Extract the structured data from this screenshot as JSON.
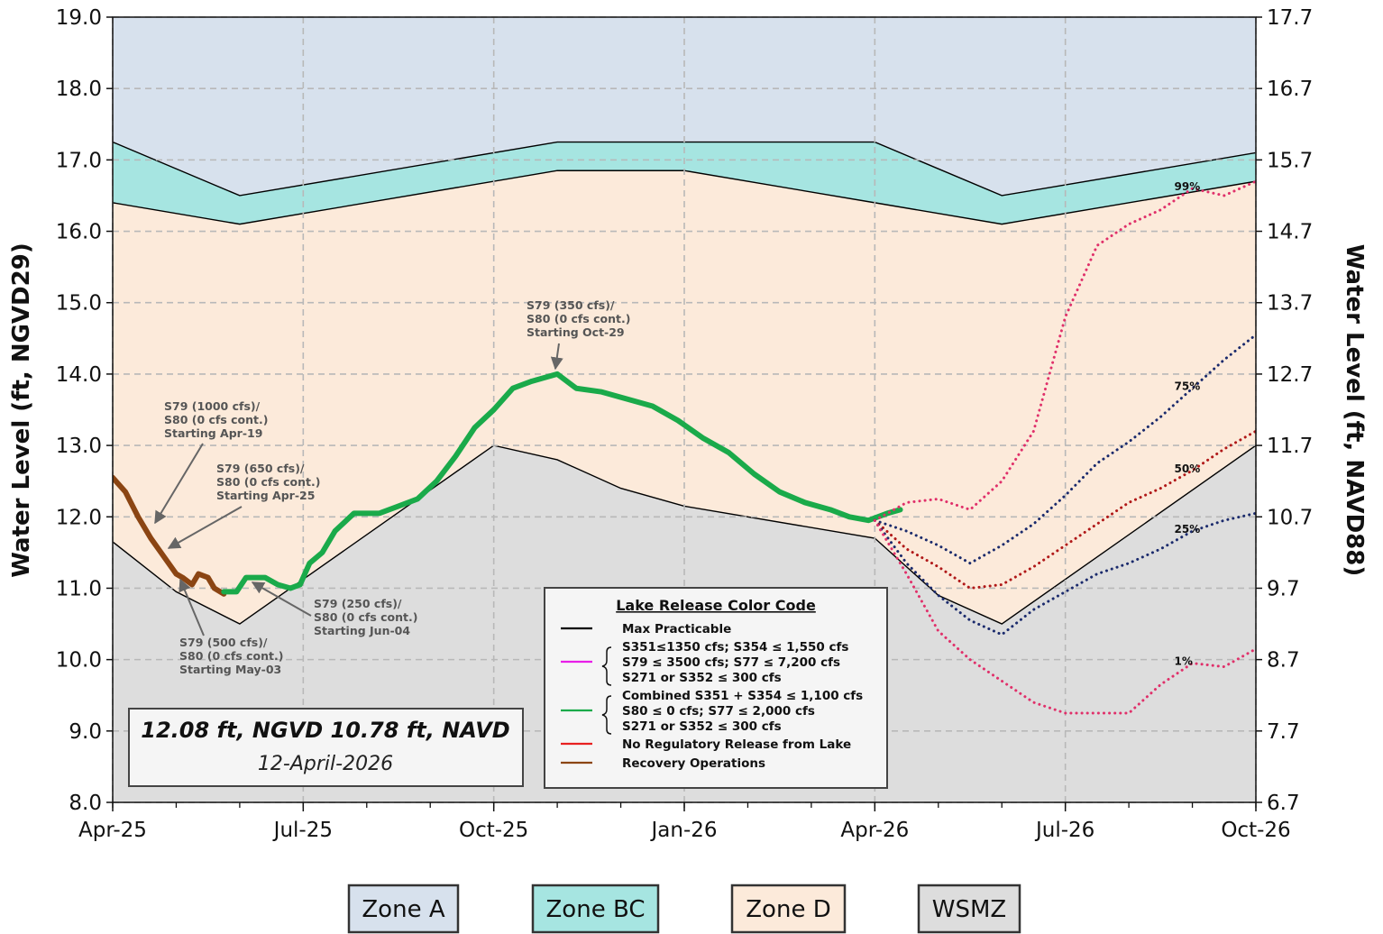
{
  "chart_data": {
    "type": "line",
    "ylabel": "Water Level (ft, NGVD29)",
    "y2label": "Water Level (ft, NAVD88)",
    "xlim": [
      0,
      18
    ],
    "xticks": [
      {
        "value": 0,
        "label": "Apr-25"
      },
      {
        "value": 3,
        "label": "Jul-25"
      },
      {
        "value": 6,
        "label": "Oct-25"
      },
      {
        "value": 9,
        "label": "Jan-26"
      },
      {
        "value": 12,
        "label": "Apr-26"
      },
      {
        "value": 15,
        "label": "Jul-26"
      },
      {
        "value": 18,
        "label": "Oct-26"
      }
    ],
    "ylim": [
      8.0,
      19.0
    ],
    "yticks": [
      {
        "value": 8,
        "label": "8.0"
      },
      {
        "value": 9,
        "label": "9.0"
      },
      {
        "value": 10,
        "label": "10.0"
      },
      {
        "value": 11,
        "label": "11.0"
      },
      {
        "value": 12,
        "label": "12.0"
      },
      {
        "value": 13,
        "label": "13.0"
      },
      {
        "value": 14,
        "label": "14.0"
      },
      {
        "value": 15,
        "label": "15.0"
      },
      {
        "value": 16,
        "label": "16.0"
      },
      {
        "value": 17,
        "label": "17.0"
      },
      {
        "value": 18,
        "label": "18.0"
      },
      {
        "value": 19,
        "label": "19.0"
      }
    ],
    "y2lim": [
      6.7,
      17.7
    ],
    "y2ticks": [
      6.7,
      7.7,
      8.7,
      9.7,
      10.7,
      11.7,
      12.7,
      13.7,
      14.7,
      15.7,
      16.7,
      17.7
    ],
    "grid": true,
    "zones": [
      {
        "name": "Zone A",
        "color": "#d7e1ed"
      },
      {
        "name": "Zone BC",
        "color": "#a6e5e1"
      },
      {
        "name": "Zone D",
        "color": "#fceada"
      },
      {
        "name": "WSMZ",
        "color": "#dddddd"
      }
    ],
    "boundary_color": "#000000",
    "boundaries": [
      {
        "x": [
          0,
          2,
          7,
          12,
          14,
          18
        ],
        "values": [
          17.25,
          16.5,
          17.25,
          17.25,
          16.5,
          17.1
        ]
      },
      {
        "x": [
          0,
          2,
          7,
          9,
          12,
          14,
          18
        ],
        "values": [
          16.4,
          16.1,
          16.85,
          16.85,
          16.4,
          16.1,
          16.7
        ]
      },
      {
        "x": [
          0,
          1,
          2,
          6,
          7,
          8,
          9,
          12,
          13,
          14,
          18
        ],
        "values": [
          11.65,
          10.95,
          10.5,
          13.0,
          12.8,
          12.4,
          12.15,
          11.7,
          10.9,
          10.5,
          13.0
        ]
      }
    ],
    "series": [
      {
        "color": "#8b4513",
        "style": "solid",
        "x": [
          0,
          0.2,
          0.4,
          0.6,
          0.8,
          1.0,
          1.1,
          1.25,
          1.35,
          1.5,
          1.6,
          1.75
        ],
        "values": [
          12.55,
          12.35,
          12.0,
          11.7,
          11.45,
          11.2,
          11.15,
          11.05,
          11.2,
          11.15,
          11.0,
          10.92
        ]
      },
      {
        "color": "#1aaa4a",
        "style": "solid",
        "x": [
          1.75,
          1.95,
          2.1,
          2.4,
          2.6,
          2.8,
          2.95,
          3.1,
          3.3,
          3.5,
          3.8,
          4.2,
          4.5,
          4.8,
          5.1,
          5.4,
          5.7,
          6.0,
          6.3,
          6.6,
          7.0,
          7.3,
          7.7,
          8.1,
          8.5,
          8.9,
          9.3,
          9.7,
          10.1,
          10.5,
          10.9,
          11.3,
          11.6,
          11.9,
          12.2,
          12.4
        ],
        "values": [
          10.95,
          10.95,
          11.15,
          11.15,
          11.05,
          11.0,
          11.05,
          11.35,
          11.5,
          11.8,
          12.05,
          12.05,
          12.15,
          12.25,
          12.5,
          12.85,
          13.25,
          13.5,
          13.8,
          13.9,
          14.0,
          13.8,
          13.75,
          13.65,
          13.55,
          13.35,
          13.1,
          12.9,
          12.6,
          12.35,
          12.2,
          12.1,
          12.0,
          11.95,
          12.05,
          12.1
        ]
      },
      {
        "name": "99%",
        "color": "#e0306a",
        "style": "dotted",
        "x": [
          12,
          12.5,
          13,
          13.5,
          14,
          14.5,
          15,
          15.5,
          16,
          16.5,
          17,
          17.5,
          18
        ],
        "values": [
          11.95,
          12.2,
          12.25,
          12.1,
          12.5,
          13.2,
          14.8,
          15.8,
          16.1,
          16.3,
          16.6,
          16.5,
          16.7
        ]
      },
      {
        "name": "75%",
        "color": "#1a2a6c",
        "style": "dotted",
        "x": [
          12,
          12.5,
          13,
          13.5,
          14,
          14.5,
          15,
          15.5,
          16,
          16.5,
          17,
          17.5,
          18
        ],
        "values": [
          11.95,
          11.8,
          11.6,
          11.35,
          11.6,
          11.9,
          12.3,
          12.75,
          13.05,
          13.4,
          13.8,
          14.2,
          14.55
        ]
      },
      {
        "name": "50%",
        "color": "#b01818",
        "style": "dotted",
        "x": [
          12,
          12.5,
          13,
          13.5,
          14,
          14.5,
          15,
          15.5,
          16,
          16.5,
          17,
          17.5,
          18
        ],
        "values": [
          11.95,
          11.55,
          11.3,
          11.0,
          11.05,
          11.3,
          11.6,
          11.9,
          12.2,
          12.4,
          12.65,
          12.95,
          13.2
        ]
      },
      {
        "name": "25%",
        "color": "#1a2a6c",
        "style": "dotted",
        "x": [
          12,
          12.5,
          13,
          13.5,
          14,
          14.5,
          15,
          15.5,
          16,
          16.5,
          17,
          17.5,
          18
        ],
        "values": [
          11.95,
          11.35,
          10.9,
          10.55,
          10.35,
          10.7,
          10.95,
          11.2,
          11.35,
          11.55,
          11.8,
          11.95,
          12.05
        ]
      },
      {
        "name": "1%",
        "color": "#e0306a",
        "style": "dotted",
        "x": [
          12,
          12.5,
          13,
          13.5,
          14,
          14.5,
          15,
          15.5,
          16,
          16.5,
          17,
          17.5,
          18
        ],
        "values": [
          11.95,
          11.2,
          10.4,
          10.0,
          9.7,
          9.4,
          9.25,
          9.25,
          9.25,
          9.65,
          9.95,
          9.9,
          10.15
        ]
      }
    ],
    "annotations": [
      {
        "lines": [
          "S79 (1000 cfs)/",
          "S80 (0 cfs cont.)",
          "Starting Apr-19"
        ]
      },
      {
        "lines": [
          "S79 (650 cfs)/",
          "S80 (0 cfs cont.)",
          "Starting Apr-25"
        ]
      },
      {
        "lines": [
          "S79 (500 cfs)/",
          "S80 (0 cfs cont.)",
          "Starting May-03"
        ]
      },
      {
        "lines": [
          "S79 (250 cfs)/",
          "S80 (0 cfs cont.)",
          "Starting Jun-04"
        ]
      },
      {
        "lines": [
          "S79 (350 cfs)/",
          "S80 (0 cfs cont.)",
          "Starting Oct-29"
        ]
      }
    ],
    "legend": {
      "title": "Lake Release Color Code",
      "entries": [
        {
          "color": "#000000",
          "lines": [
            "Max Practicable"
          ]
        },
        {
          "color": "#e81ee8",
          "lines": [
            "S351≤1350 cfs; S354 ≤ 1,550 cfs",
            "S79 ≤ 3500 cfs; S77 ≤ 7,200 cfs",
            "S271 or S352 ≤ 300 cfs"
          ]
        },
        {
          "color": "#1aaa4a",
          "lines": [
            "Combined S351 + S354 ≤ 1,100 cfs",
            "S80 ≤ 0 cfs; S77 ≤ 2,000 cfs",
            "S271 or S352 ≤ 300 cfs"
          ]
        },
        {
          "color": "#e82020",
          "lines": [
            "No Regulatory Release from Lake"
          ]
        },
        {
          "color": "#8b4513",
          "lines": [
            "Recovery Operations"
          ]
        }
      ]
    },
    "status": {
      "level": "12.08 ft, NGVD 10.78 ft, NAVD",
      "date": "12-April-2026"
    }
  }
}
